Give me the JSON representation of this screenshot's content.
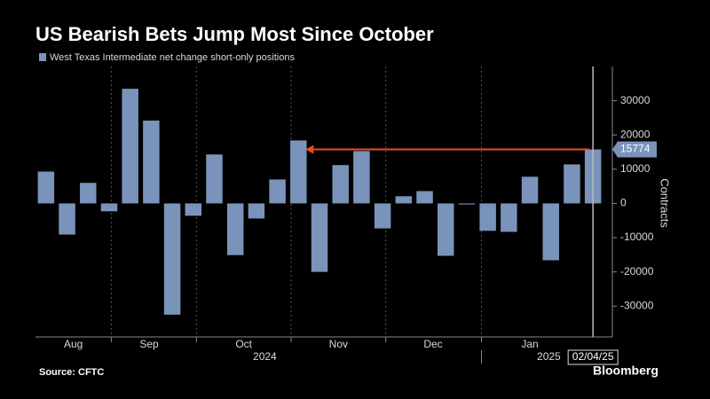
{
  "chart_data": {
    "type": "bar",
    "title": "US Bearish Bets Jump Most Since October",
    "legend": "West Texas Intermediate net change short-only positions",
    "y_label": "Contracts",
    "source": "Source: CFTC",
    "brand": "Bloomberg",
    "color": "#7a93ba",
    "arrow_color": "#f04a23",
    "categories": [
      null,
      null,
      null,
      null,
      null,
      null,
      null,
      null,
      null,
      null,
      null,
      null,
      null,
      null,
      null,
      null,
      null,
      null,
      null,
      null,
      null,
      null,
      null,
      null,
      null,
      null,
      "02/04/25"
    ],
    "values": [
      9300,
      -9100,
      6000,
      -2300,
      33500,
      24200,
      -32500,
      -3600,
      14300,
      -15100,
      -4400,
      7000,
      18400,
      -20000,
      11200,
      15300,
      -7300,
      2100,
      3600,
      -15300,
      -300,
      -8000,
      -8300,
      7800,
      -16600,
      11400,
      15774
    ],
    "ylim": [
      -39000,
      40000
    ],
    "yticks": [
      -30000,
      -20000,
      -10000,
      0,
      10000,
      20000,
      30000
    ],
    "month_labels": [
      {
        "value": 1.8,
        "label": "Aug"
      },
      {
        "value": 5.4,
        "label": "Sep"
      },
      {
        "value": 9.9,
        "label": "Oct"
      },
      {
        "value": 14.4,
        "label": "Nov"
      },
      {
        "value": 18.9,
        "label": "Dec"
      },
      {
        "value": 23.5,
        "label": "Jan"
      }
    ],
    "year_labels": [
      {
        "value": 10.9,
        "label": "2024"
      },
      {
        "value": 24.4,
        "label": "2025"
      }
    ]
  }
}
